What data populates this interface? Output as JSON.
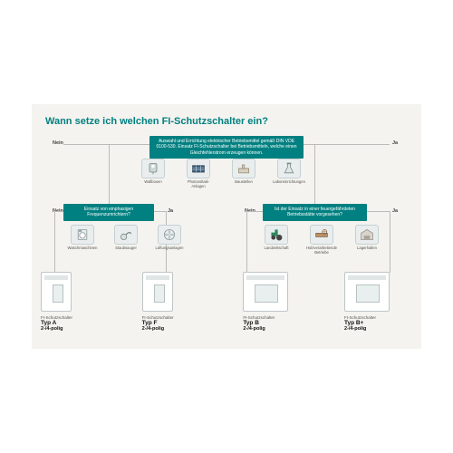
{
  "title": "Wann setze ich welchen FI-Schutzschalter ein?",
  "colors": {
    "teal": "#008080",
    "panel": "#f5f3ef",
    "line": "#bbbbbb",
    "text_muted": "#555555"
  },
  "labels": {
    "nein": "Nein",
    "ja": "Ja"
  },
  "boxes": {
    "root": "Auswahl und Errichtung elektrischer Betriebsmittel gemäß DIN VDE 0100-530. Einsatz FI-Schutzschalter bei Betriebsmitteln, welche einen Gleichfehlerstrom erzeugen können.",
    "left": "Einsatz von einphasigen Frequenzumrichtern?",
    "right": "Ist der Einsatz in einer feuergefährdeten Betriebsstätte vorgesehen?"
  },
  "row1": [
    {
      "label": "Wallboxen",
      "icon": "wallbox"
    },
    {
      "label": "Photovoltaik-Anlagen",
      "icon": "pv"
    },
    {
      "label": "Baustellen",
      "icon": "construction"
    },
    {
      "label": "Laboreinrichtungen",
      "icon": "lab"
    }
  ],
  "row2l": [
    {
      "label": "Waschmaschinen",
      "icon": "washer"
    },
    {
      "label": "Staubsauger",
      "icon": "vacuum"
    },
    {
      "label": "Lüftungsanlagen",
      "icon": "fan"
    }
  ],
  "row2r": [
    {
      "label": "Landwirtschaft",
      "icon": "tractor"
    },
    {
      "label": "Holzverarbeitende Betriebe",
      "icon": "wood"
    },
    {
      "label": "Lagerhallen",
      "icon": "warehouse"
    }
  ],
  "leaves": [
    {
      "sub": "FI-Schutzschalter",
      "type": "Typ A",
      "poles": "2-/4-polig",
      "wide": false
    },
    {
      "sub": "FI-Schutzschalter",
      "type": "Typ F",
      "poles": "2-/4-polig",
      "wide": false
    },
    {
      "sub": "FI-Schutzschalter",
      "type": "Typ B",
      "poles": "2-/4-polig",
      "wide": true
    },
    {
      "sub": "FI-Schutzschalter",
      "type": "Typ B+",
      "poles": "2-/4-polig",
      "wide": true
    }
  ]
}
